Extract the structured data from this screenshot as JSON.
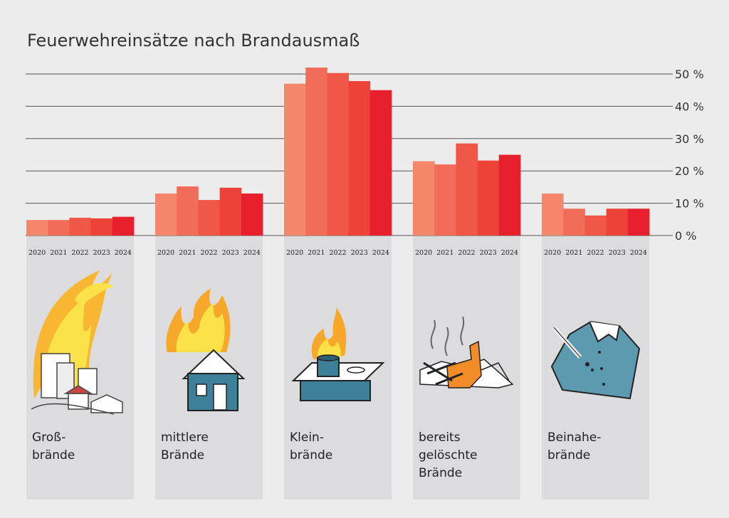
{
  "chart_data": {
    "type": "bar",
    "title": "Feuerwehreinsätze nach Brandausmaß",
    "xlabel": "",
    "ylabel": "",
    "ylim": [
      0,
      50
    ],
    "yticks": [
      "0 %",
      "10 %",
      "20 %",
      "30 %",
      "40 %",
      "50 %"
    ],
    "grid": true,
    "years": [
      "2020",
      "2021",
      "2022",
      "2023",
      "2024"
    ],
    "groups": [
      {
        "label": [
          "Groß-",
          "brände"
        ],
        "icon": "large-fire-city-icon",
        "values": [
          4.8,
          4.8,
          5.5,
          5.3,
          5.8
        ]
      },
      {
        "label": [
          "mittlere",
          "Brände"
        ],
        "icon": "burning-house-icon",
        "values": [
          13,
          15.2,
          11,
          14.8,
          13
        ]
      },
      {
        "label": [
          "Klein-",
          "brände"
        ],
        "icon": "stove-pot-fire-icon",
        "values": [
          47,
          52,
          50.3,
          47.8,
          45
        ]
      },
      {
        "label": [
          "bereits",
          "gelöschte",
          "Brände"
        ],
        "icon": "extinguished-debris-icon",
        "values": [
          23,
          22,
          28.5,
          23.2,
          25
        ]
      },
      {
        "label": [
          "Beinahe-",
          "brände"
        ],
        "icon": "cigarette-burned-shirt-icon",
        "values": [
          13,
          8.3,
          6.2,
          8.3,
          8.3
        ]
      }
    ]
  },
  "colors": {
    "years": [
      "#f4866a",
      "#f26d58",
      "#ef5846",
      "#ec4238",
      "#e81f2c"
    ],
    "panel": "#dcdcdf",
    "grid": "#555555",
    "background": "#ececec"
  }
}
